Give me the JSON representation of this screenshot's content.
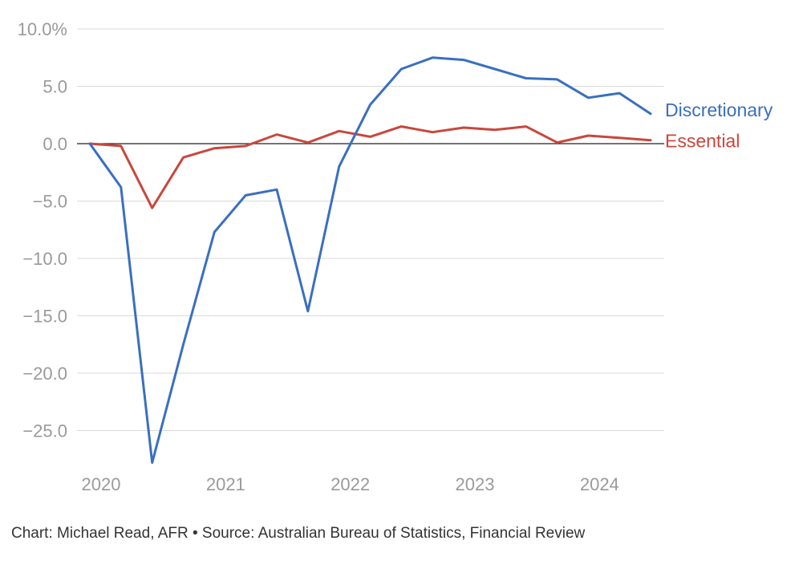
{
  "chart_data": {
    "type": "line",
    "x_tick_labels": [
      "2020",
      "2021",
      "2022",
      "2023",
      "2024"
    ],
    "y_tick_labels": [
      "10.0%",
      "5.0",
      "0.0",
      "−5.0",
      "−10.0",
      "−15.0",
      "−20.0",
      "−25.0"
    ],
    "y_ticks": [
      10,
      5,
      0,
      -5,
      -10,
      -15,
      -20,
      -25
    ],
    "ylim": [
      -28,
      10
    ],
    "x_start_year": 2020,
    "x_end_year": 2024.5,
    "x": [
      2020.0,
      2020.25,
      2020.5,
      2020.75,
      2021.0,
      2021.25,
      2021.5,
      2021.75,
      2022.0,
      2022.25,
      2022.5,
      2022.75,
      2023.0,
      2023.25,
      2023.5,
      2023.75,
      2024.0,
      2024.25,
      2024.5
    ],
    "series": [
      {
        "name": "Discretionary",
        "color": "#3a6fc0",
        "values": [
          0.0,
          -3.8,
          -27.8,
          -17.5,
          -7.7,
          -4.5,
          -4.0,
          -14.6,
          -2.0,
          3.4,
          6.5,
          7.5,
          7.3,
          6.5,
          5.7,
          5.6,
          4.0,
          4.4,
          2.6
        ]
      },
      {
        "name": "Essential",
        "color": "#c9473c",
        "values": [
          0.0,
          -0.2,
          -5.6,
          -1.2,
          -0.4,
          -0.2,
          0.8,
          0.1,
          1.1,
          0.6,
          1.5,
          1.0,
          1.4,
          1.2,
          1.5,
          0.1,
          0.7,
          0.5,
          0.3
        ]
      }
    ],
    "grid": true,
    "zero_line": true,
    "legend": "inline-right"
  },
  "source": "Chart: Michael Read, AFR • Source: Australian Bureau of Statistics, Financial Review"
}
